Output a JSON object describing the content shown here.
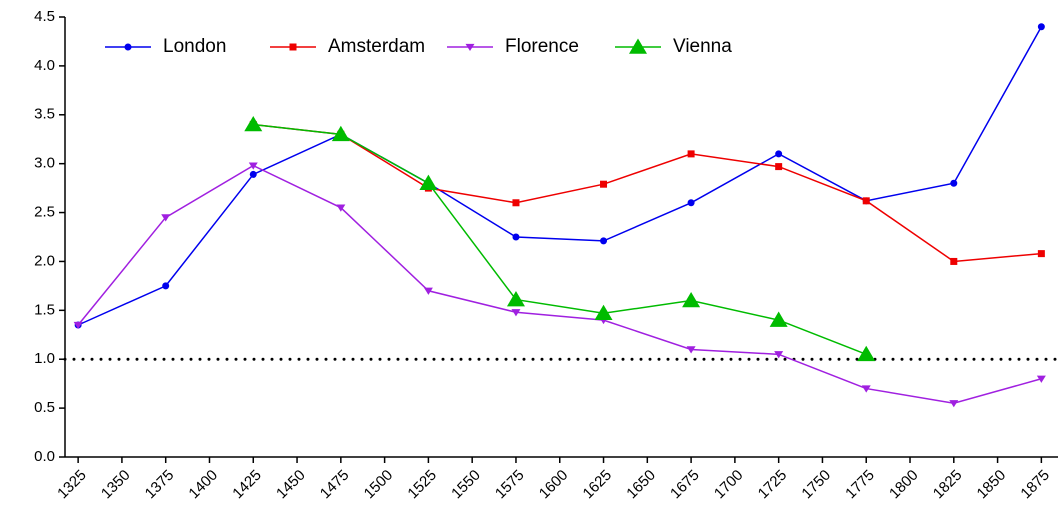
{
  "chart_data": {
    "type": "line",
    "x": [
      1325,
      1375,
      1425,
      1475,
      1525,
      1575,
      1625,
      1675,
      1725,
      1775,
      1825,
      1875
    ],
    "series": [
      {
        "name": "London",
        "color": "#0000ee",
        "marker": "circle",
        "values": [
          1.35,
          1.75,
          2.89,
          3.3,
          2.8,
          2.25,
          2.21,
          2.6,
          3.1,
          2.62,
          2.8,
          4.4
        ]
      },
      {
        "name": "Amsterdam",
        "color": "#ee0000",
        "marker": "square",
        "values": [
          null,
          null,
          3.4,
          3.3,
          2.75,
          2.6,
          2.79,
          3.1,
          2.97,
          2.62,
          2.0,
          2.08
        ]
      },
      {
        "name": "Florence",
        "color": "#a020e0",
        "marker": "triangle-down",
        "values": [
          1.35,
          2.45,
          2.98,
          2.55,
          1.7,
          1.48,
          1.4,
          1.1,
          1.05,
          0.7,
          0.55,
          0.8
        ]
      },
      {
        "name": "Vienna",
        "color": "#00bb00",
        "marker": "triangle-up",
        "values": [
          null,
          null,
          3.4,
          3.3,
          2.8,
          1.61,
          1.47,
          1.6,
          1.4,
          1.05,
          null,
          null
        ]
      }
    ],
    "reference_line": 1,
    "xlim": [
      1317.5,
      1884.5
    ],
    "xticks": [
      1325,
      1350,
      1375,
      1400,
      1425,
      1450,
      1475,
      1500,
      1525,
      1550,
      1575,
      1600,
      1625,
      1650,
      1675,
      1700,
      1725,
      1750,
      1775,
      1800,
      1825,
      1850,
      1875
    ],
    "ylim": [
      0,
      4.5
    ],
    "yticks": [
      {
        "value": 0,
        "label": "0.0"
      },
      {
        "value": 0.5,
        "label": "0.5"
      },
      {
        "value": 1,
        "label": "1.0"
      },
      {
        "value": 1.5,
        "label": "1.5"
      },
      {
        "value": 2,
        "label": "2.0"
      },
      {
        "value": 2.5,
        "label": "2.5"
      },
      {
        "value": 3,
        "label": "3.0"
      },
      {
        "value": 3.5,
        "label": "3.5"
      },
      {
        "value": 4,
        "label": "4.0"
      },
      {
        "value": 4.5,
        "label": "4.5"
      }
    ],
    "grid": false
  }
}
